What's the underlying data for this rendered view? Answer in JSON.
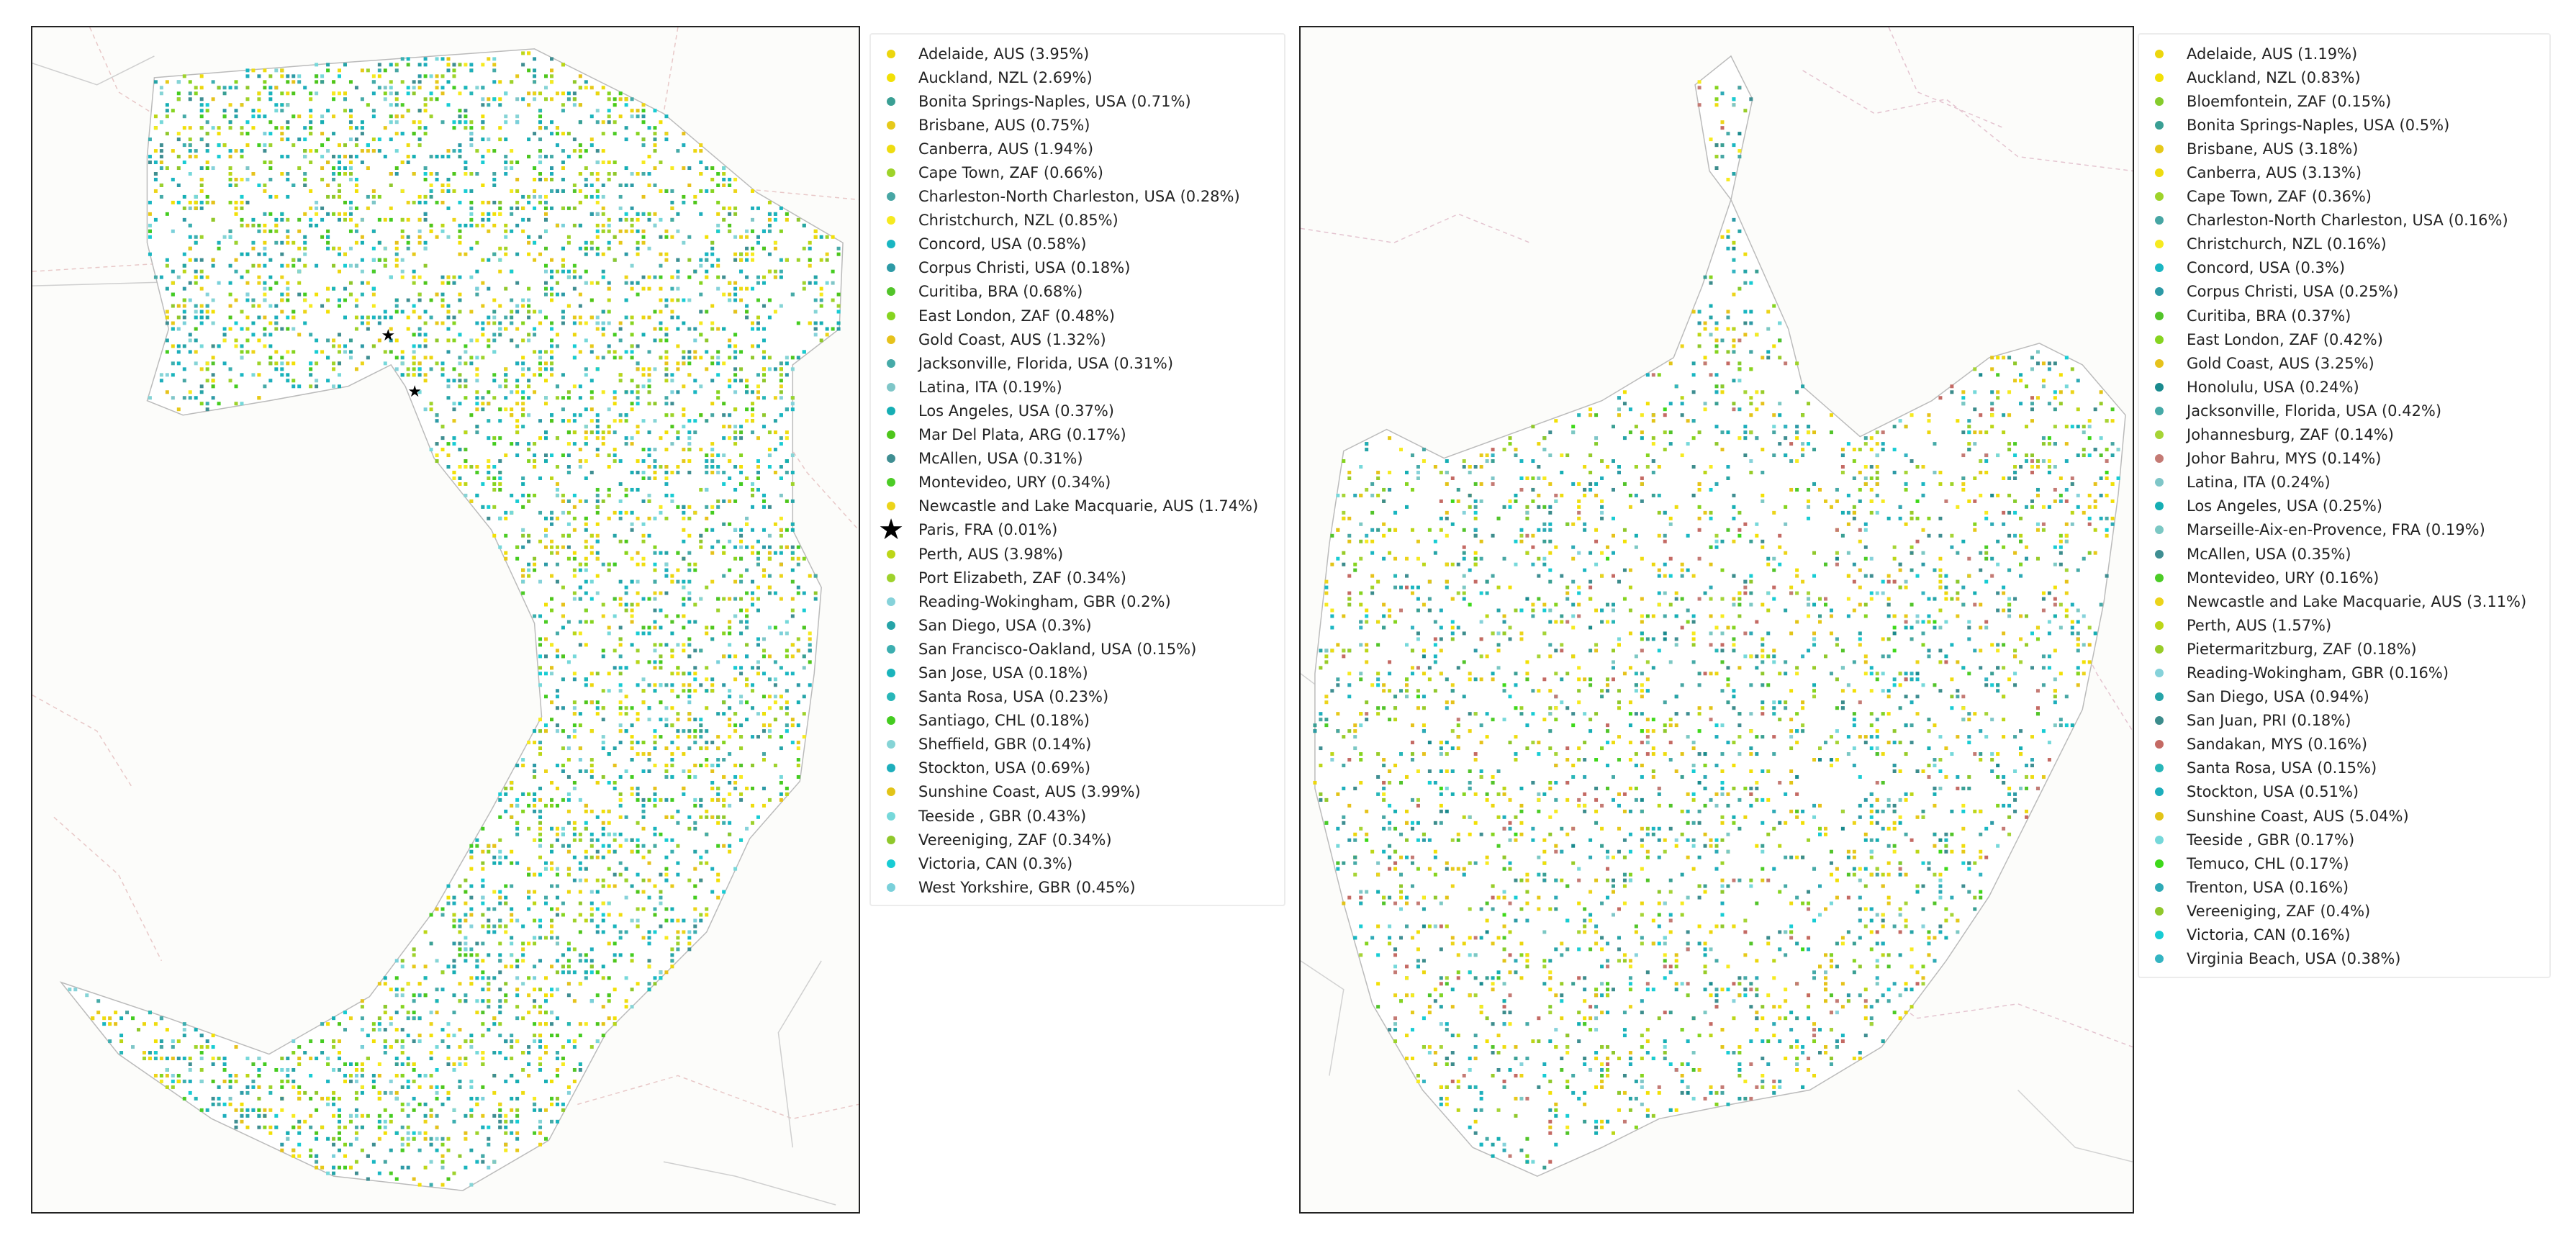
{
  "maps": {
    "left": {
      "legend": [
        {
          "label": "Adelaide, AUS (3.95%)",
          "color": "#ecd60e",
          "marker": "dot"
        },
        {
          "label": "Auckland, NZL (2.69%)",
          "color": "#f2e006",
          "marker": "dot"
        },
        {
          "label": "Bonita Springs-Naples, USA (0.71%)",
          "color": "#3a9f94",
          "marker": "dot"
        },
        {
          "label": "Brisbane, AUS (0.75%)",
          "color": "#e6c91a",
          "marker": "dot"
        },
        {
          "label": "Canberra, AUS (1.94%)",
          "color": "#eedc10",
          "marker": "dot"
        },
        {
          "label": "Cape Town, ZAF (0.66%)",
          "color": "#9ed32a",
          "marker": "dot"
        },
        {
          "label": "Charleston-North Charleston, USA (0.28%)",
          "color": "#47a6a4",
          "marker": "dot"
        },
        {
          "label": "Christchurch, NZL (0.85%)",
          "color": "#f6ea20",
          "marker": "dot"
        },
        {
          "label": "Concord, USA (0.58%)",
          "color": "#1ab6c2",
          "marker": "dot"
        },
        {
          "label": "Corpus Christi, USA (0.18%)",
          "color": "#2d9aa6",
          "marker": "dot"
        },
        {
          "label": "Curitiba, BRA (0.68%)",
          "color": "#52c42a",
          "marker": "dot"
        },
        {
          "label": "East London, ZAF (0.48%)",
          "color": "#86d420",
          "marker": "dot"
        },
        {
          "label": "Gold Coast, AUS (1.32%)",
          "color": "#e6c21c",
          "marker": "dot"
        },
        {
          "label": "Jacksonville, Florida, USA (0.31%)",
          "color": "#46aaa8",
          "marker": "dot"
        },
        {
          "label": "Latina, ITA (0.19%)",
          "color": "#7fc6c8",
          "marker": "dot"
        },
        {
          "label": "Los Angeles, USA (0.37%)",
          "color": "#16aeb4",
          "marker": "dot"
        },
        {
          "label": "Mar Del Plata, ARG (0.17%)",
          "color": "#4ec61c",
          "marker": "dot"
        },
        {
          "label": "McAllen, USA (0.31%)",
          "color": "#3f8e92",
          "marker": "dot"
        },
        {
          "label": "Montevideo, URY (0.34%)",
          "color": "#4ccc26",
          "marker": "dot"
        },
        {
          "label": "Newcastle and Lake Macquarie, AUS (1.74%)",
          "color": "#ecd41a",
          "marker": "dot"
        },
        {
          "label": "Paris, FRA (0.01%)",
          "color": "#000000",
          "marker": "star"
        },
        {
          "label": "Perth, AUS (3.98%)",
          "color": "#bcd618",
          "marker": "dot"
        },
        {
          "label": "Port Elizabeth, ZAF (0.34%)",
          "color": "#9ed22c",
          "marker": "dot"
        },
        {
          "label": "Reading-Wokingham, GBR (0.2%)",
          "color": "#86d2da",
          "marker": "dot"
        },
        {
          "label": "San Diego, USA (0.3%)",
          "color": "#26a4a8",
          "marker": "dot"
        },
        {
          "label": "San Francisco-Oakland, USA (0.15%)",
          "color": "#3caeb0",
          "marker": "dot"
        },
        {
          "label": "San Jose, USA (0.18%)",
          "color": "#1ab4bc",
          "marker": "dot"
        },
        {
          "label": "Santa Rosa, USA (0.23%)",
          "color": "#28b6b8",
          "marker": "dot"
        },
        {
          "label": "Santiago, CHL (0.18%)",
          "color": "#44cc20",
          "marker": "dot"
        },
        {
          "label": "Sheffield, GBR (0.14%)",
          "color": "#86d4d6",
          "marker": "dot"
        },
        {
          "label": "Stockton, USA (0.69%)",
          "color": "#1eaebc",
          "marker": "dot"
        },
        {
          "label": "Sunshine Coast, AUS (3.99%)",
          "color": "#e2c418",
          "marker": "dot"
        },
        {
          "label": "Teeside , GBR (0.43%)",
          "color": "#76d8da",
          "marker": "dot"
        },
        {
          "label": "Vereeniging, ZAF (0.34%)",
          "color": "#90c82c",
          "marker": "dot"
        },
        {
          "label": "Victoria, CAN (0.3%)",
          "color": "#18ccd4",
          "marker": "dot"
        },
        {
          "label": "West Yorkshire, GBR (0.45%)",
          "color": "#7ad0da",
          "marker": "dot"
        }
      ]
    },
    "right": {
      "legend": [
        {
          "label": "Adelaide, AUS (1.19%)",
          "color": "#ecd60e",
          "marker": "dot"
        },
        {
          "label": "Auckland, NZL (0.83%)",
          "color": "#f2e006",
          "marker": "dot"
        },
        {
          "label": "Bloemfontein, ZAF (0.15%)",
          "color": "#86cc2c",
          "marker": "dot"
        },
        {
          "label": "Bonita Springs-Naples, USA (0.5%)",
          "color": "#3a9f94",
          "marker": "dot"
        },
        {
          "label": "Brisbane, AUS (3.18%)",
          "color": "#e6c91a",
          "marker": "dot"
        },
        {
          "label": "Canberra, AUS (3.13%)",
          "color": "#eedc10",
          "marker": "dot"
        },
        {
          "label": "Cape Town, ZAF (0.36%)",
          "color": "#9ed32a",
          "marker": "dot"
        },
        {
          "label": "Charleston-North Charleston, USA (0.16%)",
          "color": "#47a6a4",
          "marker": "dot"
        },
        {
          "label": "Christchurch, NZL (0.16%)",
          "color": "#f6ea20",
          "marker": "dot"
        },
        {
          "label": "Concord, USA (0.3%)",
          "color": "#1ab6c2",
          "marker": "dot"
        },
        {
          "label": "Corpus Christi, USA (0.25%)",
          "color": "#2d9aa6",
          "marker": "dot"
        },
        {
          "label": "Curitiba, BRA (0.37%)",
          "color": "#52c42a",
          "marker": "dot"
        },
        {
          "label": "East London, ZAF (0.42%)",
          "color": "#86d420",
          "marker": "dot"
        },
        {
          "label": "Gold Coast, AUS (3.25%)",
          "color": "#e6c21c",
          "marker": "dot"
        },
        {
          "label": "Honolulu, USA (0.24%)",
          "color": "#1a8a8e",
          "marker": "dot"
        },
        {
          "label": "Jacksonville, Florida, USA (0.42%)",
          "color": "#46aaa8",
          "marker": "dot"
        },
        {
          "label": "Johannesburg, ZAF (0.14%)",
          "color": "#a6d436",
          "marker": "dot"
        },
        {
          "label": "Johor Bahru, MYS (0.14%)",
          "color": "#c47a74",
          "marker": "dot"
        },
        {
          "label": "Latina, ITA (0.24%)",
          "color": "#7fc6c8",
          "marker": "dot"
        },
        {
          "label": "Los Angeles, USA (0.25%)",
          "color": "#16aeb4",
          "marker": "dot"
        },
        {
          "label": "Marseille-Aix-en-Provence, FRA (0.19%)",
          "color": "#7cc8c4",
          "marker": "dot"
        },
        {
          "label": "McAllen, USA (0.35%)",
          "color": "#3f8e92",
          "marker": "dot"
        },
        {
          "label": "Montevideo, URY (0.16%)",
          "color": "#4ccc26",
          "marker": "dot"
        },
        {
          "label": "Newcastle and Lake Macquarie, AUS (3.11%)",
          "color": "#ecd41a",
          "marker": "dot"
        },
        {
          "label": "Perth, AUS (1.57%)",
          "color": "#bcd618",
          "marker": "dot"
        },
        {
          "label": "Pietermaritzburg, ZAF (0.18%)",
          "color": "#98cc28",
          "marker": "dot"
        },
        {
          "label": "Reading-Wokingham, GBR (0.16%)",
          "color": "#86d2da",
          "marker": "dot"
        },
        {
          "label": "San Diego, USA (0.94%)",
          "color": "#26a4a8",
          "marker": "dot"
        },
        {
          "label": "San Juan, PRI (0.18%)",
          "color": "#3c8c8c",
          "marker": "dot"
        },
        {
          "label": "Sandakan, MYS (0.16%)",
          "color": "#c46a64",
          "marker": "dot"
        },
        {
          "label": "Santa Rosa, USA (0.15%)",
          "color": "#28b6b8",
          "marker": "dot"
        },
        {
          "label": "Stockton, USA (0.51%)",
          "color": "#1eaebc",
          "marker": "dot"
        },
        {
          "label": "Sunshine Coast, AUS (5.04%)",
          "color": "#e2c418",
          "marker": "dot"
        },
        {
          "label": "Teeside , GBR (0.17%)",
          "color": "#76d8da",
          "marker": "dot"
        },
        {
          "label": "Temuco, CHL (0.17%)",
          "color": "#3ed81a",
          "marker": "dot"
        },
        {
          "label": "Trenton, USA (0.16%)",
          "color": "#2eaab6",
          "marker": "dot"
        },
        {
          "label": "Vereeniging, ZAF (0.4%)",
          "color": "#90c82c",
          "marker": "dot"
        },
        {
          "label": "Victoria, CAN (0.16%)",
          "color": "#18ccd4",
          "marker": "dot"
        },
        {
          "label": "Virginia Beach, USA (0.38%)",
          "color": "#34b4c2",
          "marker": "dot"
        }
      ]
    }
  }
}
